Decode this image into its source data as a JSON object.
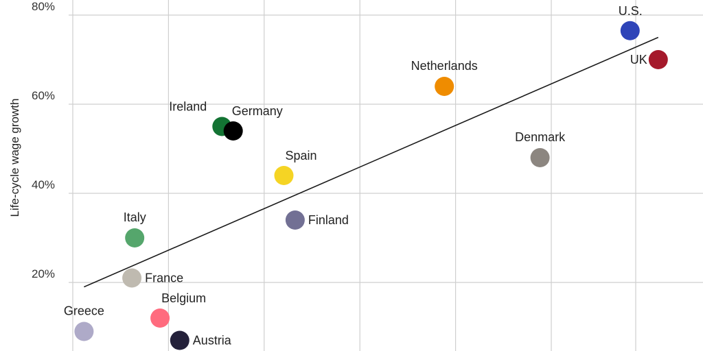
{
  "chart_data": {
    "type": "scatter",
    "title": "",
    "ylabel": "Life-cycle wage growth",
    "xlabel": "",
    "ylim": [
      0,
      80
    ],
    "xlim": [
      0,
      100
    ],
    "y_ticks": [
      {
        "value": 20,
        "label": "20%"
      },
      {
        "value": 40,
        "label": "40%"
      },
      {
        "value": 60,
        "label": "60%"
      },
      {
        "value": 80,
        "label": "80%"
      }
    ],
    "x_gridlines": [
      1,
      18,
      35,
      52,
      69,
      86,
      101
    ],
    "grid": true,
    "points": [
      {
        "name": "U.S.",
        "x": 100,
        "y": 76.5,
        "color": "#2e44b8",
        "label_side": "above-left"
      },
      {
        "name": "UK",
        "x": 105,
        "y": 70,
        "color": "#a5192b",
        "label_side": "left"
      },
      {
        "name": "Netherlands",
        "x": 67,
        "y": 64,
        "color": "#ef8c00",
        "label_side": "above"
      },
      {
        "name": "Ireland",
        "x": 27.5,
        "y": 55,
        "color": "#137333",
        "label_side": "above-left"
      },
      {
        "name": "Germany",
        "x": 29.5,
        "y": 54,
        "color": "#000000",
        "label_side": "above-right"
      },
      {
        "name": "Denmark",
        "x": 84,
        "y": 48,
        "color": "#8c8680",
        "label_side": "above"
      },
      {
        "name": "Spain",
        "x": 38.5,
        "y": 44,
        "color": "#f5d424",
        "label_side": "above-right"
      },
      {
        "name": "Finland",
        "x": 40.5,
        "y": 34,
        "color": "#727094",
        "label_side": "right"
      },
      {
        "name": "Italy",
        "x": 12,
        "y": 30,
        "color": "#55a66c",
        "label_side": "above"
      },
      {
        "name": "France",
        "x": 11.5,
        "y": 21,
        "color": "#bfbab0",
        "label_side": "right"
      },
      {
        "name": "Belgium",
        "x": 16.5,
        "y": 12,
        "color": "#ff6b7e",
        "label_side": "above-right"
      },
      {
        "name": "Greece",
        "x": 3,
        "y": 9,
        "color": "#aeaac8",
        "label_side": "above"
      },
      {
        "name": "Austria",
        "x": 20,
        "y": 7,
        "color": "#24213a",
        "label_side": "right"
      }
    ],
    "trend_line": {
      "x1": 3,
      "y1": 19,
      "x2": 105,
      "y2": 75,
      "color": "#1a1a1a"
    }
  }
}
